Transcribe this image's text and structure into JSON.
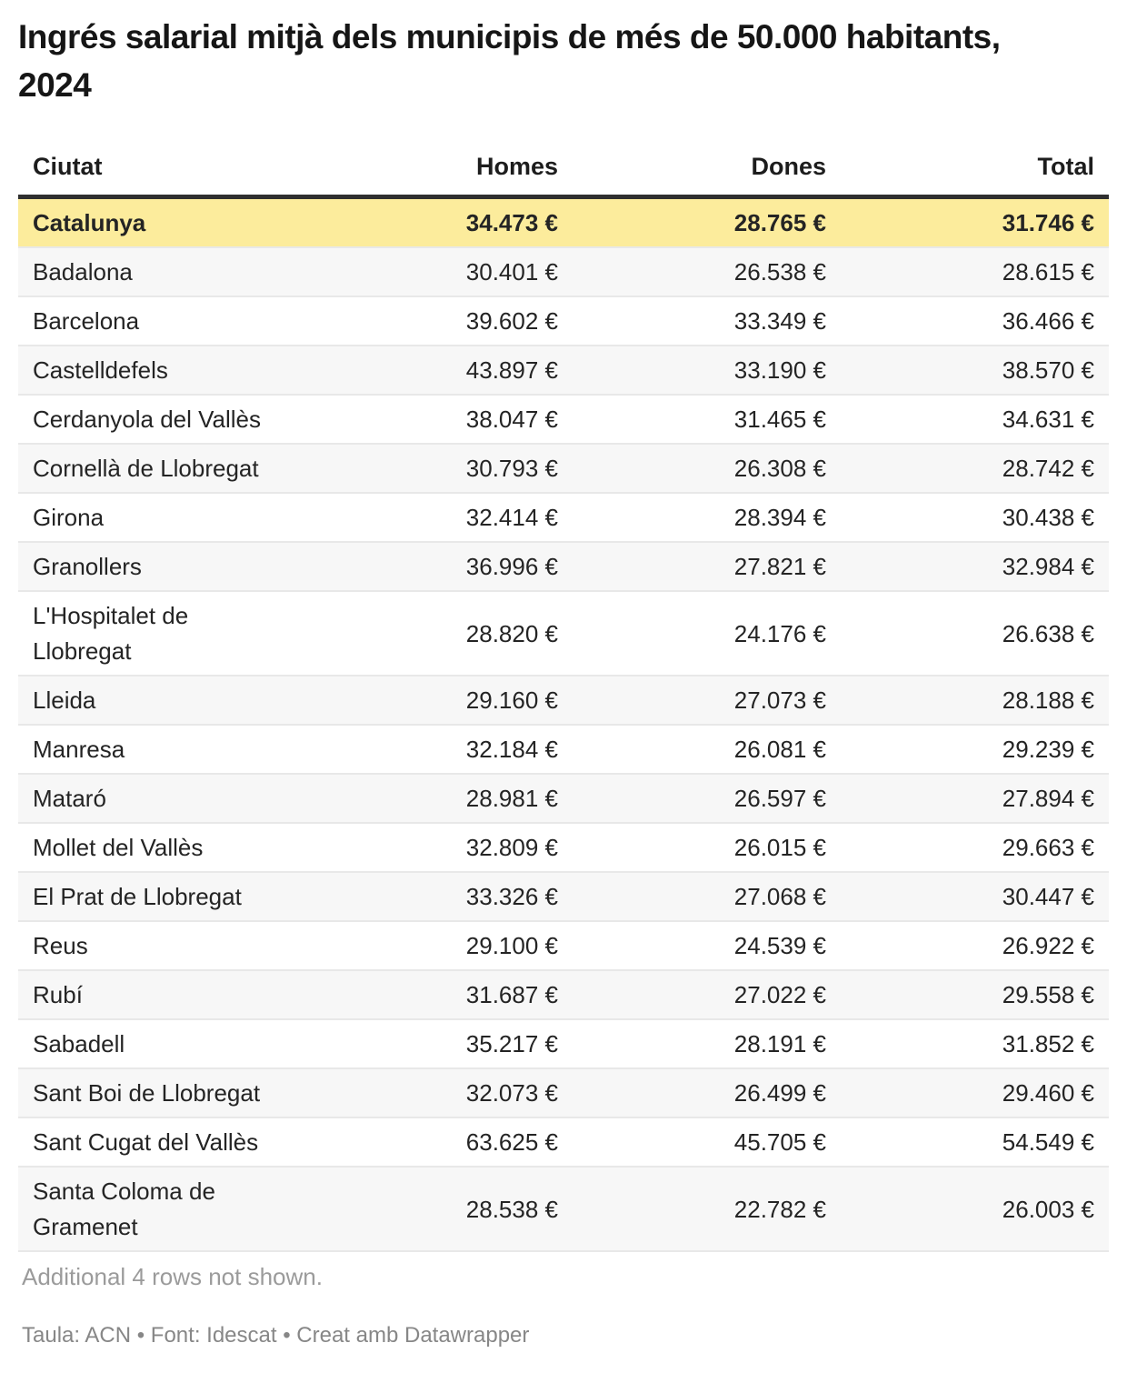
{
  "title": "Ingrés salarial mitjà dels municipis de més de 50.000 habitants, 2024",
  "table": {
    "columns": [
      "Ciutat",
      "Homes",
      "Dones",
      "Total"
    ],
    "rows": [
      {
        "ciutat": "Catalunya",
        "homes": "34.473 €",
        "dones": "28.765 €",
        "total": "31.746 €",
        "highlight": true
      },
      {
        "ciutat": "Badalona",
        "homes": "30.401 €",
        "dones": "26.538 €",
        "total": "28.615 €",
        "highlight": false
      },
      {
        "ciutat": "Barcelona",
        "homes": "39.602 €",
        "dones": "33.349 €",
        "total": "36.466 €",
        "highlight": false
      },
      {
        "ciutat": "Castelldefels",
        "homes": "43.897 €",
        "dones": "33.190 €",
        "total": "38.570 €",
        "highlight": false
      },
      {
        "ciutat": "Cerdanyola del Vallès",
        "homes": "38.047 €",
        "dones": "31.465 €",
        "total": "34.631 €",
        "highlight": false
      },
      {
        "ciutat": "Cornellà de Llobregat",
        "homes": "30.793 €",
        "dones": "26.308 €",
        "total": "28.742 €",
        "highlight": false
      },
      {
        "ciutat": "Girona",
        "homes": "32.414 €",
        "dones": "28.394 €",
        "total": "30.438 €",
        "highlight": false
      },
      {
        "ciutat": "Granollers",
        "homes": "36.996 €",
        "dones": "27.821 €",
        "total": "32.984 €",
        "highlight": false
      },
      {
        "ciutat": "L'Hospitalet de Llobregat",
        "homes": "28.820 €",
        "dones": "24.176 €",
        "total": "26.638 €",
        "highlight": false
      },
      {
        "ciutat": "Lleida",
        "homes": "29.160 €",
        "dones": "27.073 €",
        "total": "28.188 €",
        "highlight": false
      },
      {
        "ciutat": "Manresa",
        "homes": "32.184 €",
        "dones": "26.081 €",
        "total": "29.239 €",
        "highlight": false
      },
      {
        "ciutat": "Mataró",
        "homes": "28.981 €",
        "dones": "26.597 €",
        "total": "27.894 €",
        "highlight": false
      },
      {
        "ciutat": "Mollet del Vallès",
        "homes": "32.809 €",
        "dones": "26.015 €",
        "total": "29.663 €",
        "highlight": false
      },
      {
        "ciutat": "El Prat de Llobregat",
        "homes": "33.326 €",
        "dones": "27.068 €",
        "total": "30.447 €",
        "highlight": false
      },
      {
        "ciutat": "Reus",
        "homes": "29.100 €",
        "dones": "24.539 €",
        "total": "26.922 €",
        "highlight": false
      },
      {
        "ciutat": "Rubí",
        "homes": "31.687 €",
        "dones": "27.022 €",
        "total": "29.558 €",
        "highlight": false
      },
      {
        "ciutat": "Sabadell",
        "homes": "35.217 €",
        "dones": "28.191 €",
        "total": "31.852 €",
        "highlight": false
      },
      {
        "ciutat": "Sant Boi de Llobregat",
        "homes": "32.073 €",
        "dones": "26.499 €",
        "total": "29.460 €",
        "highlight": false
      },
      {
        "ciutat": "Sant Cugat del Vallès",
        "homes": "63.625 €",
        "dones": "45.705 €",
        "total": "54.549 €",
        "highlight": false
      },
      {
        "ciutat": "Santa Coloma de Gramenet",
        "homes": "28.538 €",
        "dones": "22.782 €",
        "total": "26.003 €",
        "highlight": false
      }
    ]
  },
  "footer": {
    "additional_rows_note": "Additional 4 rows not shown.",
    "credit": "Taula: ACN • Font: Idescat • Creat amb Datawrapper"
  },
  "colors": {
    "highlight_row_bg": "#fcec9c",
    "stripe_row_bg": "#f7f7f7",
    "row_border": "#e8e8e8",
    "header_border": "#2f2f2f",
    "body_text": "#242424",
    "muted_text": "#9b9b9b",
    "credit_text": "#878787"
  },
  "chart_data": {
    "type": "table",
    "title": "Ingrés salarial mitjà dels municipis de més de 50.000 habitants, 2024",
    "unit": "€",
    "columns": [
      "Ciutat",
      "Homes",
      "Dones",
      "Total"
    ],
    "highlighted_row": "Catalunya",
    "note": "Additional 4 rows not shown.",
    "source": "Taula: ACN • Font: Idescat • Creat amb Datawrapper",
    "rows": [
      [
        "Catalunya",
        34473,
        28765,
        31746
      ],
      [
        "Badalona",
        30401,
        26538,
        28615
      ],
      [
        "Barcelona",
        39602,
        33349,
        36466
      ],
      [
        "Castelldefels",
        43897,
        33190,
        38570
      ],
      [
        "Cerdanyola del Vallès",
        38047,
        31465,
        34631
      ],
      [
        "Cornellà de Llobregat",
        30793,
        26308,
        28742
      ],
      [
        "Girona",
        32414,
        28394,
        30438
      ],
      [
        "Granollers",
        36996,
        27821,
        32984
      ],
      [
        "L'Hospitalet de Llobregat",
        28820,
        24176,
        26638
      ],
      [
        "Lleida",
        29160,
        27073,
        28188
      ],
      [
        "Manresa",
        32184,
        26081,
        29239
      ],
      [
        "Mataró",
        28981,
        26597,
        27894
      ],
      [
        "Mollet del Vallès",
        32809,
        26015,
        29663
      ],
      [
        "El Prat de Llobregat",
        33326,
        27068,
        30447
      ],
      [
        "Reus",
        29100,
        24539,
        26922
      ],
      [
        "Rubí",
        31687,
        27022,
        29558
      ],
      [
        "Sabadell",
        35217,
        28191,
        31852
      ],
      [
        "Sant Boi de Llobregat",
        32073,
        26499,
        29460
      ],
      [
        "Sant Cugat del Vallès",
        63625,
        45705,
        54549
      ],
      [
        "Santa Coloma de Gramenet",
        28538,
        22782,
        26003
      ]
    ]
  }
}
